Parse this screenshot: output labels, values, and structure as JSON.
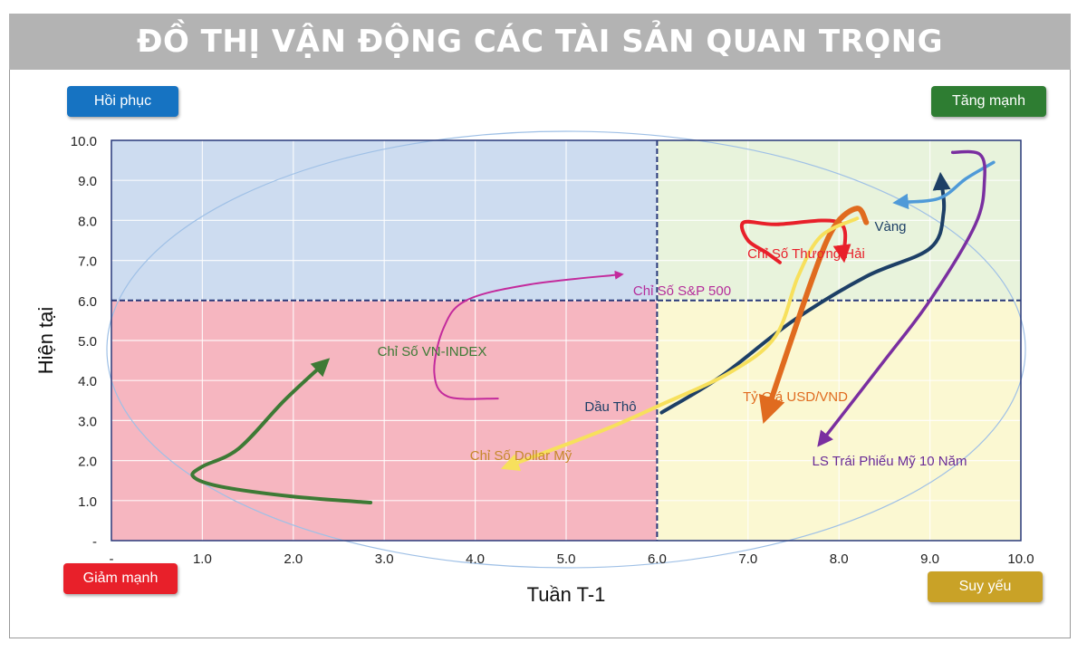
{
  "title": "ĐỒ THỊ VẬN ĐỘNG CÁC TÀI SẢN QUAN TRỌNG",
  "quadrants": {
    "top_left": {
      "label": "Hồi phục",
      "color": "#1673c2"
    },
    "top_right": {
      "label": "Tăng mạnh",
      "color": "#2e7d32"
    },
    "bottom_left": {
      "label": "Giảm mạnh",
      "color": "#e8202a"
    },
    "bottom_right": {
      "label": "Suy yếu",
      "color": "#c9a227"
    }
  },
  "chart_data": {
    "type": "scatter",
    "xlabel": "Tuần T-1",
    "ylabel": "Hiện tại",
    "xlim": [
      0,
      10
    ],
    "ylim": [
      0,
      10
    ],
    "divider": {
      "x": 6,
      "y": 6
    },
    "x_ticks": [
      "-",
      "1.0",
      "2.0",
      "3.0",
      "4.0",
      "5.0",
      "6.0",
      "7.0",
      "8.0",
      "9.0",
      "10.0"
    ],
    "y_ticks": [
      "-",
      "1.0",
      "2.0",
      "3.0",
      "4.0",
      "5.0",
      "6.0",
      "7.0",
      "8.0",
      "9.0",
      "10.0"
    ],
    "quadrant_colors": {
      "top_left": "#cddcf0",
      "top_right": "#e8f3dc",
      "bottom_left": "#f6b6c0",
      "bottom_right": "#fbf8d2"
    },
    "series": [
      {
        "name": "Chỉ Số VN-INDEX",
        "color": "#3d7a35",
        "label_color": "#3d7a35",
        "x": [
          2.85,
          2.0,
          1.2,
          0.9,
          1.0,
          1.4,
          1.9,
          2.35
        ],
        "y": [
          0.95,
          1.1,
          1.35,
          1.6,
          1.85,
          2.3,
          3.5,
          4.45
        ]
      },
      {
        "name": "Chỉ Số S&P 500",
        "color": "#c32a9c",
        "label_color": "#b52d9b",
        "x": [
          4.25,
          3.7,
          3.55,
          3.65,
          3.9,
          4.6,
          5.6
        ],
        "y": [
          3.55,
          3.6,
          4.2,
          5.3,
          6.0,
          6.4,
          6.65
        ]
      },
      {
        "name": "Dầu Thô",
        "color": "#1d3f66",
        "label_color": "#1d3f66",
        "x": [
          6.05,
          6.7,
          7.5,
          8.3,
          9.0,
          9.15,
          9.12
        ],
        "y": [
          3.2,
          4.1,
          5.5,
          6.6,
          7.3,
          8.2,
          9.05
        ]
      },
      {
        "name": "Vàng",
        "color": "#4f9ad8",
        "label_color": "#1d3f66",
        "x": [
          9.7,
          9.4,
          9.1,
          8.65
        ],
        "y": [
          9.45,
          9.05,
          8.55,
          8.45
        ]
      },
      {
        "name": "Chỉ Số Thượng Hải",
        "color": "#e8202a",
        "label_color": "#e8202a",
        "x": [
          7.35,
          7.2,
          7.0,
          6.95,
          7.3,
          8.0,
          8.05
        ],
        "y": [
          6.95,
          7.2,
          7.5,
          7.95,
          7.9,
          7.95,
          7.1
        ]
      },
      {
        "name": "Tỷ Giá USD/VND",
        "color": "#e06b1f",
        "label_color": "#e06b1f",
        "x": [
          8.3,
          8.2,
          7.95,
          7.7,
          7.2
        ],
        "y": [
          7.95,
          8.3,
          7.85,
          6.5,
          3.15
        ]
      },
      {
        "name": "Chỉ Số Dollar Mỹ",
        "color": "#f7e05c",
        "label_color": "#c6882a",
        "x": [
          8.2,
          7.8,
          7.55,
          7.3,
          6.8,
          6.0,
          5.4,
          4.35
        ],
        "y": [
          8.05,
          7.6,
          6.6,
          5.1,
          4.2,
          3.35,
          2.75,
          1.85
        ]
      },
      {
        "name": "LS Trái Phiếu Mỹ 10 Năm",
        "color": "#7a2fa0",
        "label_color": "#6a2c96",
        "x": [
          9.25,
          9.55,
          9.6,
          9.5,
          9.0,
          8.5,
          7.8
        ],
        "y": [
          9.7,
          9.65,
          9.0,
          7.9,
          6.0,
          4.5,
          2.45
        ]
      }
    ]
  }
}
